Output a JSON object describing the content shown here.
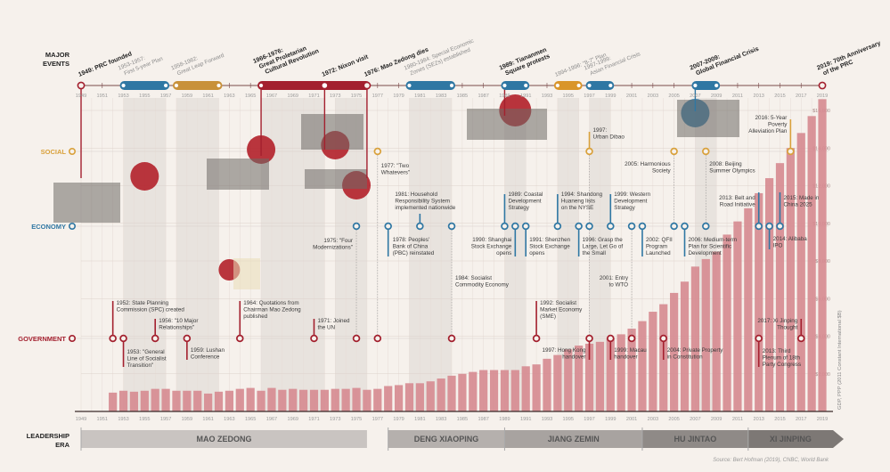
{
  "row_labels": {
    "major": [
      "MAJOR",
      "EVENTS"
    ],
    "social": "SOCIAL",
    "economy": "ECONOMY",
    "government": "GOVERNMENT",
    "leadership": [
      "LEADERSHIP",
      "ERA"
    ]
  },
  "colors": {
    "background": "#f6f1ec",
    "bars": "#d68a90",
    "government": "#a3202e",
    "economy": "#2f77a3",
    "social": "#d9a13b",
    "band": "#e3deda"
  },
  "major_events": [
    {
      "year": 1949,
      "lines": [
        "1949: PRC founded"
      ],
      "bold": true
    },
    {
      "year": 1953,
      "end": 1957,
      "lines": [
        "1953-1957:",
        "First 5-year Plan"
      ],
      "bold": false,
      "color": "#2f77a3"
    },
    {
      "year": 1958,
      "end": 1962,
      "lines": [
        "1958-1962:",
        "Great Leap Forward"
      ],
      "bold": false,
      "color": "#c8913a"
    },
    {
      "year": 1966,
      "end": 1976,
      "lines": [
        "1966-1976:",
        "Great Proletarian",
        "Cultural Revolution"
      ],
      "bold": true,
      "color": "#a3202e"
    },
    {
      "year": 1972,
      "lines": [
        "1972: Nixon visit"
      ],
      "bold": true
    },
    {
      "year": 1976,
      "lines": [
        "1976: Mao Zedong dies"
      ],
      "bold": true
    },
    {
      "year": 1980,
      "end": 1984,
      "lines": [
        "1980-1984: Special Economic",
        "Zones (SEZs) established"
      ],
      "bold": false,
      "color": "#2f77a3"
    },
    {
      "year": 1989,
      "end": 1991,
      "lines": [
        "1989: Tiananmen",
        "Square protests"
      ],
      "bold": true,
      "color": "#2f77a3"
    },
    {
      "year": 1994,
      "end": 1996,
      "lines": [
        "1994-1996: \"8-7\" Plan"
      ],
      "bold": false,
      "color": "#d9952a"
    },
    {
      "year": 1997,
      "end": 1999,
      "lines": [
        "1997-1999:",
        "Asian Financial Crisis"
      ],
      "bold": false,
      "color": "#2f77a3"
    },
    {
      "year": 2007,
      "end": 2009,
      "lines": [
        "2007-2009:",
        "Global Financial Crisis"
      ],
      "bold": true,
      "color": "#2f77a3"
    },
    {
      "year": 2019,
      "lines": [
        "2019: 70th Anniversary",
        "of the PRC"
      ],
      "bold": true
    }
  ],
  "events": {
    "social": [
      {
        "year": 1977,
        "lines": [
          "1977: \"Two",
          "Whatevers\""
        ]
      },
      {
        "year": 1997,
        "lines": [
          "1997:",
          "Urban Dibao"
        ]
      },
      {
        "year": 2005,
        "lines": [
          "2005: Harmonious",
          "Society"
        ]
      },
      {
        "year": 2008,
        "lines": [
          "2008: Beijing",
          "Summer Olympics"
        ]
      },
      {
        "year": 2016,
        "lines": [
          "2016: 5-Year",
          "Poverty",
          "Alleviation Plan"
        ]
      }
    ],
    "economy": [
      {
        "year": 1975,
        "lines": [
          "1975: \"Four",
          "Modernizations\""
        ]
      },
      {
        "year": 1978,
        "lines": [
          "1978: Peoples'",
          "Bank of China",
          "(PBC) reinstated"
        ]
      },
      {
        "year": 1981,
        "lines": [
          "1981: Household",
          "Responsibility System",
          "implemented nationwide"
        ]
      },
      {
        "year": 1984,
        "lines": [
          "1984: Socialist",
          "Commodity Economy"
        ]
      },
      {
        "year": 1989,
        "lines": [
          "1989: Coastal",
          "Development",
          "Strategy"
        ]
      },
      {
        "year": 1990,
        "lines": [
          "1990: Shanghai",
          "Stock Exchange",
          "opens"
        ]
      },
      {
        "year": 1991,
        "lines": [
          "1991: Shenzhen",
          "Stock Exchange",
          "opens"
        ]
      },
      {
        "year": 1994,
        "lines": [
          "1994: Shandong",
          "Huaneng lists",
          "on the NYSE"
        ]
      },
      {
        "year": 1996,
        "lines": [
          "1996: Grasp the",
          "Large, Let Go of",
          "the Small"
        ]
      },
      {
        "year": 1997,
        "lines": []
      },
      {
        "year": 1999,
        "lines": [
          "1999: Western",
          "Development",
          "Strategy"
        ]
      },
      {
        "year": 2001,
        "lines": [
          "2001: Entry",
          "to WTO"
        ]
      },
      {
        "year": 2002,
        "lines": [
          "2002: QFII",
          "Program",
          "Launched"
        ]
      },
      {
        "year": 2005,
        "lines": []
      },
      {
        "year": 2006,
        "lines": [
          "2006: Medium-term",
          "Plan for Scientific",
          "Development"
        ]
      },
      {
        "year": 2008,
        "lines": []
      },
      {
        "year": 2013,
        "lines": [
          "2013: Belt and",
          "Road Initiative"
        ]
      },
      {
        "year": 2014,
        "lines": [
          "2014: Alibaba",
          "IPO"
        ]
      },
      {
        "year": 2015,
        "lines": [
          "2015: Made in",
          "China 2025"
        ]
      }
    ],
    "government": [
      {
        "year": 1952,
        "lines": [
          "1952: State Planning",
          "Commission (SPC) created"
        ]
      },
      {
        "year": 1953,
        "lines": [
          "1953: \"General",
          "Line of Socialist",
          "Transition\""
        ]
      },
      {
        "year": 1956,
        "lines": [
          "1956: \"10 Major",
          "Relationships\""
        ]
      },
      {
        "year": 1959,
        "lines": [
          "1959: Lushan",
          "Conference"
        ]
      },
      {
        "year": 1964,
        "lines": [
          "1964: Quotations from",
          "Chairman Mao Zedong",
          "published"
        ]
      },
      {
        "year": 1971,
        "lines": [
          "1971: Joined",
          "the UN"
        ]
      },
      {
        "year": 1975,
        "lines": []
      },
      {
        "year": 1977,
        "lines": []
      },
      {
        "year": 1984,
        "lines": []
      },
      {
        "year": 1992,
        "lines": [
          "1992: Socialist",
          "Market Economy",
          "(SME)"
        ]
      },
      {
        "year": 1997,
        "lines": [
          "1997: Hong Kong",
          "handover"
        ]
      },
      {
        "year": 1999,
        "lines": [
          "1999: Macau",
          "handover"
        ]
      },
      {
        "year": 2001,
        "lines": []
      },
      {
        "year": 2004,
        "lines": [
          "2004: Private Property",
          "in Constitution"
        ]
      },
      {
        "year": 2013,
        "lines": [
          "2013: Third",
          "Plenum of 18th",
          "Party Congress"
        ]
      },
      {
        "year": 2017,
        "lines": [
          "2017: Xi Jinping",
          "Thought"
        ]
      }
    ]
  },
  "leaders": [
    {
      "name": "MAO ZEDONG",
      "start": 1949,
      "end": 1976
    },
    {
      "name": "DENG XIAOPING",
      "start": 1978,
      "end": 1989
    },
    {
      "name": "JIANG ZEMIN",
      "start": 1989,
      "end": 2002
    },
    {
      "name": "HU JINTAO",
      "start": 2002,
      "end": 2012
    },
    {
      "name": "XI JINPING",
      "start": 2012,
      "end": 2019
    }
  ],
  "source": "Source: Bert Hofman (2019), CNBC, World Bank",
  "chart_data": {
    "type": "bar",
    "ylabel": "GDP, PPP (2011 Constant International $B)",
    "ylim": [
      0,
      16000
    ],
    "yticks": [
      "$2,000",
      "$4,000",
      "$6,000",
      "$8,000",
      "$10,000",
      "$12,000",
      "$14,000",
      "$16,000"
    ],
    "ytick_values": [
      2000,
      4000,
      6000,
      8000,
      10000,
      12000,
      14000,
      16000
    ],
    "xlim": [
      1949,
      2019
    ],
    "xticks": [
      "1949",
      "1951",
      "1953",
      "1955",
      "1957",
      "1959",
      "1961",
      "1963",
      "1965",
      "1967",
      "1969",
      "1971",
      "1973",
      "1975",
      "1977",
      "1979",
      "1981",
      "1983",
      "1985",
      "1987",
      "1989",
      "1991",
      "1993",
      "1995",
      "1997",
      "1999",
      "2001",
      "2003",
      "2005",
      "2007",
      "2009",
      "2011",
      "2013",
      "2015",
      "2017",
      "2019"
    ],
    "x": [
      1952,
      1953,
      1954,
      1955,
      1956,
      1957,
      1958,
      1959,
      1960,
      1961,
      1962,
      1963,
      1964,
      1965,
      1966,
      1967,
      1968,
      1969,
      1970,
      1971,
      1972,
      1973,
      1974,
      1975,
      1976,
      1977,
      1978,
      1979,
      1980,
      1981,
      1982,
      1983,
      1984,
      1985,
      1986,
      1987,
      1988,
      1989,
      1990,
      1991,
      1992,
      1993,
      1994,
      1995,
      1996,
      1997,
      1998,
      1999,
      2000,
      2001,
      2002,
      2003,
      2004,
      2005,
      2006,
      2007,
      2008,
      2009,
      2010,
      2011,
      2012,
      2013,
      2014,
      2015,
      2016,
      2017,
      2018,
      2019
    ],
    "values": [
      1000,
      1100,
      1050,
      1100,
      1200,
      1200,
      1100,
      1100,
      1100,
      950,
      1050,
      1100,
      1200,
      1250,
      1100,
      1250,
      1150,
      1200,
      1150,
      1150,
      1150,
      1200,
      1200,
      1250,
      1150,
      1200,
      1350,
      1400,
      1500,
      1500,
      1600,
      1750,
      1900,
      2000,
      2100,
      2200,
      2200,
      2200,
      2200,
      2400,
      2500,
      2800,
      3000,
      3300,
      3500,
      3600,
      3700,
      3900,
      4100,
      4400,
      4800,
      5300,
      5700,
      6300,
      6900,
      7700,
      8100,
      8500,
      9400,
      10100,
      10800,
      11600,
      12400,
      13200,
      14000,
      14800,
      15700,
      16600
    ],
    "grid": true
  }
}
